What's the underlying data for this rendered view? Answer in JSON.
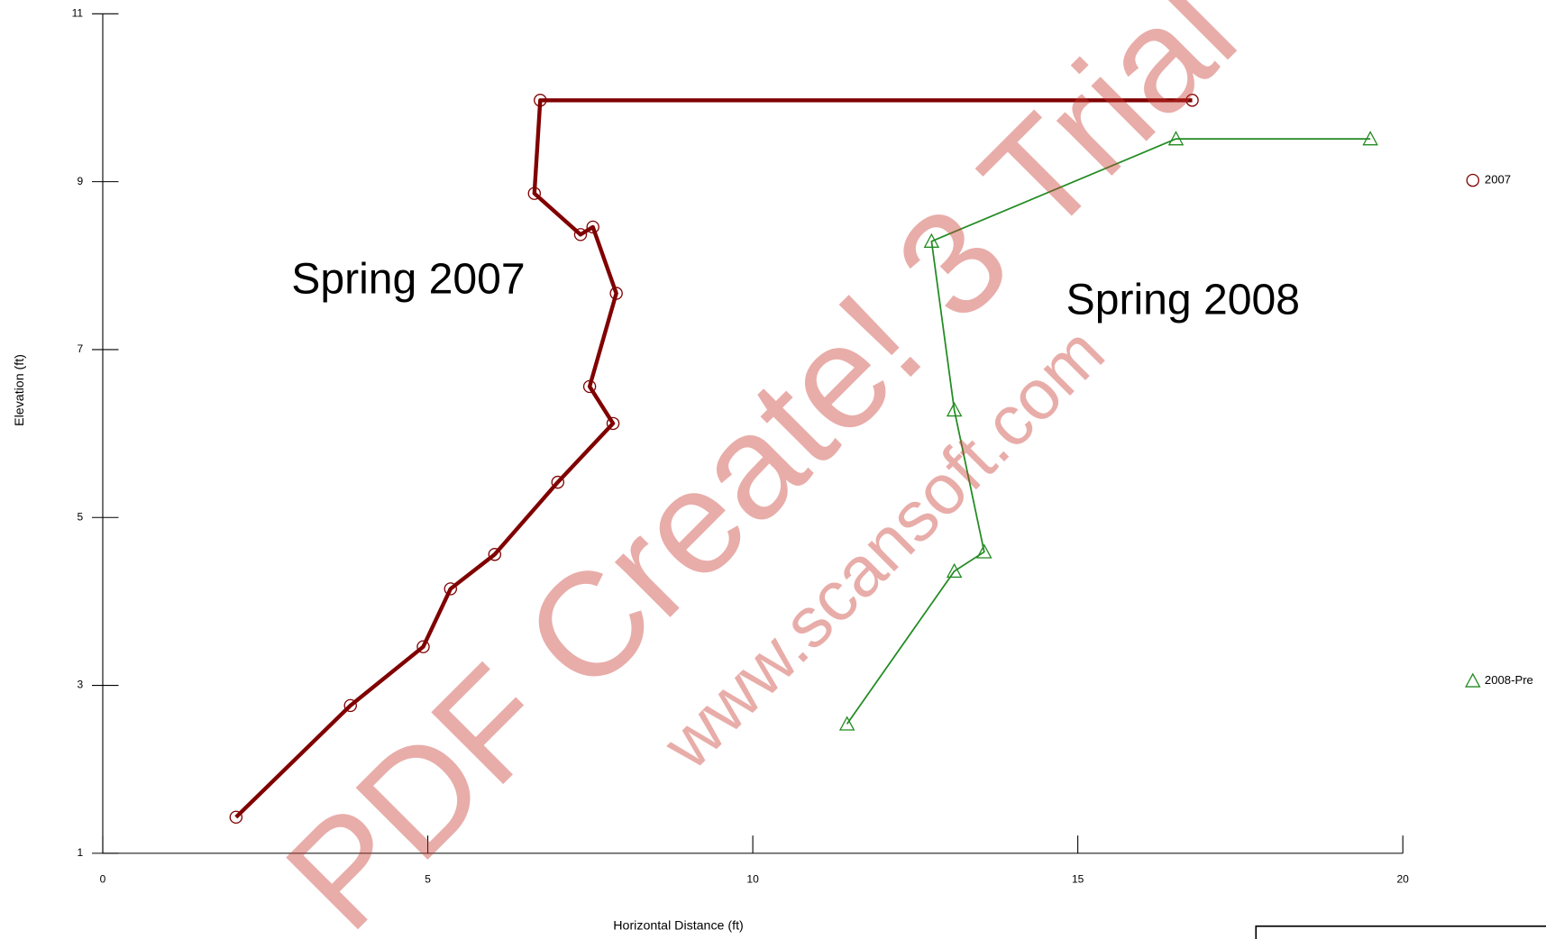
{
  "chart_data": {
    "type": "line",
    "xlabel": "Horizontal Distance (ft)",
    "ylabel": "Elevation (ft)",
    "xlim": [
      0,
      20
    ],
    "ylim": [
      1,
      11
    ],
    "xticks": [
      0,
      5,
      10,
      15,
      20
    ],
    "yticks": [
      1,
      3,
      5,
      7,
      9,
      11
    ],
    "annotations": [
      "Spring 2007",
      "Spring 2008"
    ],
    "watermark": [
      "PDF Create! 3 Trial",
      "www.scansoft.com"
    ],
    "series": [
      {
        "name": "2007",
        "color": "#800000",
        "marker": "circle",
        "x": [
          2.05,
          3.81,
          4.93,
          5.35,
          6.03,
          7.0,
          7.85,
          7.49,
          7.9,
          7.54,
          7.35,
          6.64,
          6.73,
          16.76
        ],
        "values": [
          1.43,
          2.76,
          3.46,
          4.15,
          4.56,
          5.42,
          6.12,
          6.56,
          7.67,
          8.46,
          8.37,
          8.86,
          9.97,
          9.97
        ]
      },
      {
        "name": "2008-Pre",
        "color": "#228b22",
        "marker": "triangle",
        "x": [
          11.45,
          13.1,
          13.56,
          13.1,
          12.75,
          16.51,
          19.5
        ],
        "values": [
          2.54,
          4.36,
          4.59,
          6.28,
          8.29,
          9.51,
          9.51
        ]
      }
    ]
  }
}
